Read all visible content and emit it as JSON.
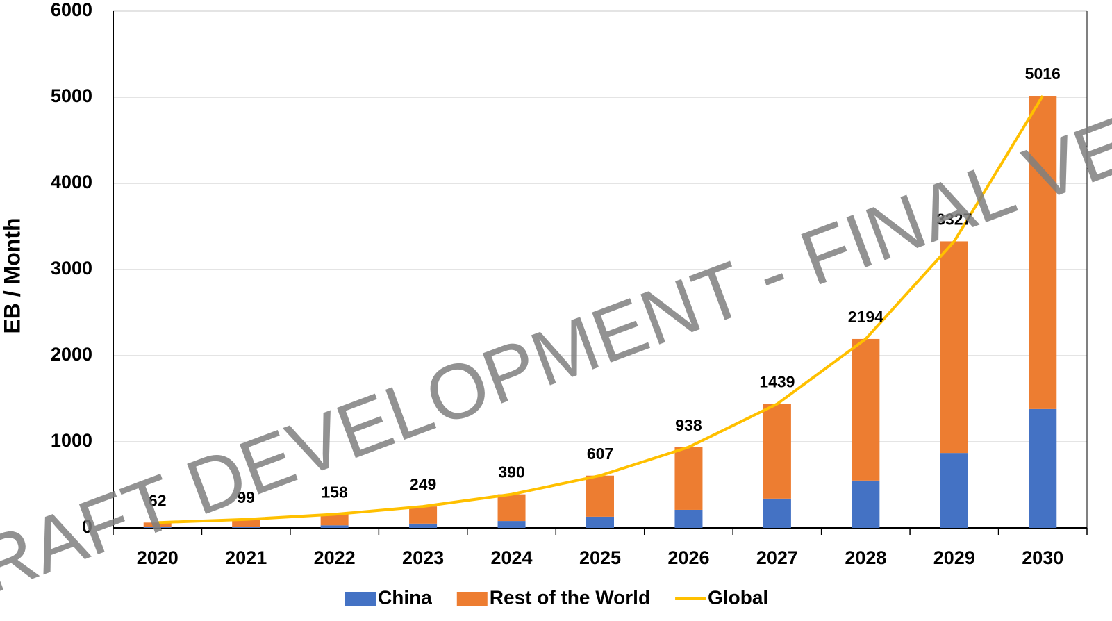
{
  "chart_data": {
    "type": "bar",
    "ylabel": "EB / Month",
    "watermark": "DRAFT DEVELOPMENT - FINAL VER",
    "categories": [
      "2020",
      "2021",
      "2022",
      "2023",
      "2024",
      "2025",
      "2026",
      "2027",
      "2028",
      "2029",
      "2030"
    ],
    "stacked": true,
    "series": [
      {
        "name": "China",
        "color": "#4472c4",
        "values": [
          10,
          15,
          30,
          50,
          80,
          130,
          210,
          340,
          550,
          870,
          1380
        ]
      },
      {
        "name": "Rest of the World",
        "color": "#ed7d31",
        "values": [
          52,
          84,
          128,
          199,
          310,
          477,
          728,
          1099,
          1644,
          2457,
          3636
        ]
      },
      {
        "name": "Global",
        "type": "line",
        "color": "#ffc000",
        "values": [
          62,
          99,
          158,
          249,
          390,
          607,
          938,
          1439,
          2194,
          3327,
          5016
        ]
      }
    ],
    "ylim": [
      0,
      6000
    ],
    "yticks": [
      0,
      1000,
      2000,
      3000,
      4000,
      5000,
      6000
    ],
    "grid": true,
    "legend": "bottom"
  }
}
